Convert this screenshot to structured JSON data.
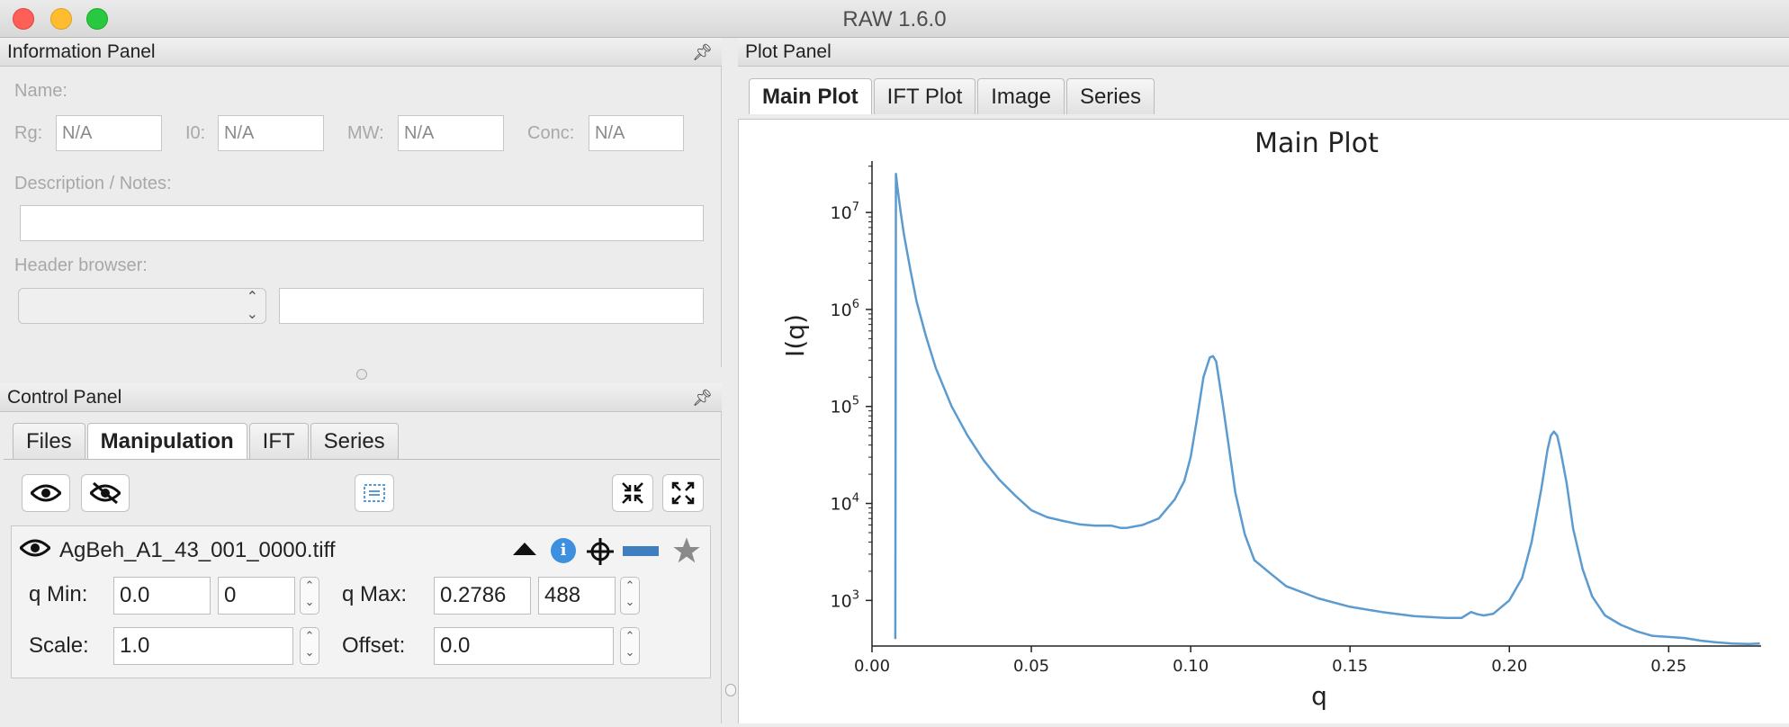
{
  "window": {
    "title": "RAW 1.6.0"
  },
  "info_panel": {
    "title": "Information Panel",
    "name_label": "Name:",
    "rg_label": "Rg:",
    "rg_value": "N/A",
    "i0_label": "I0:",
    "i0_value": "N/A",
    "mw_label": "MW:",
    "mw_value": "N/A",
    "conc_label": "Conc:",
    "conc_value": "N/A",
    "notes_label": "Description / Notes:",
    "header_label": "Header browser:"
  },
  "control_panel": {
    "title": "Control Panel",
    "tabs": [
      "Files",
      "Manipulation",
      "IFT",
      "Series"
    ],
    "active_tab": "Manipulation",
    "item": {
      "filename": "AgBeh_A1_43_001_0000.tiff",
      "qmin_label": "q Min:",
      "qmin_value": "0.0",
      "qmin_index": "0",
      "qmax_label": "q Max:",
      "qmax_value": "0.2786",
      "qmax_index": "488",
      "scale_label": "Scale:",
      "scale_value": "1.0",
      "offset_label": "Offset:",
      "offset_value": "0.0",
      "line_color": "#3f7fbf"
    }
  },
  "plot_panel": {
    "title": "Plot Panel",
    "tabs": [
      "Main Plot",
      "IFT Plot",
      "Image",
      "Series"
    ],
    "active_tab": "Main Plot"
  },
  "chart_data": {
    "type": "line",
    "title": "Main Plot",
    "xlabel": "q",
    "ylabel": "I(q)",
    "xlim": [
      0.0,
      0.279
    ],
    "ylim_log10": [
      2.53,
      7.53
    ],
    "y_scale": "log",
    "xticks": [
      "0.00",
      "0.05",
      "0.10",
      "0.15",
      "0.20",
      "0.25"
    ],
    "yticks": [
      "10^3",
      "10^4",
      "10^5",
      "10^6",
      "10^7"
    ],
    "color": "#5b9bd0",
    "series": [
      {
        "x": [
          0.0073,
          0.0075,
          0.008,
          0.009,
          0.01,
          0.012,
          0.014,
          0.017,
          0.02,
          0.025,
          0.03,
          0.035,
          0.04,
          0.045,
          0.05,
          0.055,
          0.06,
          0.065,
          0.07,
          0.075,
          0.078,
          0.08,
          0.085,
          0.09,
          0.095,
          0.098,
          0.1,
          0.102,
          0.104,
          0.106,
          0.107,
          0.108,
          0.11,
          0.112,
          0.114,
          0.117,
          0.12,
          0.125,
          0.13,
          0.14,
          0.15,
          0.16,
          0.17,
          0.18,
          0.185,
          0.188,
          0.19,
          0.192,
          0.195,
          0.2,
          0.204,
          0.207,
          0.21,
          0.212,
          0.213,
          0.214,
          0.215,
          0.216,
          0.218,
          0.22,
          0.223,
          0.226,
          0.23,
          0.235,
          0.24,
          0.245,
          0.25,
          0.255,
          0.26,
          0.265,
          0.27,
          0.275,
          0.2786
        ],
        "y": [
          400,
          25000000,
          18000000,
          10000000,
          6000000,
          2600000,
          1200000,
          520000,
          250000,
          100000,
          50000,
          28000,
          17500,
          12000,
          8500,
          7200,
          6600,
          6100,
          5900,
          5900,
          5600,
          5600,
          6000,
          7000,
          11000,
          17000,
          30000,
          75000,
          200000,
          320000,
          330000,
          290000,
          110000,
          38000,
          13000,
          4800,
          2600,
          1900,
          1400,
          1050,
          860,
          760,
          690,
          660,
          660,
          760,
          720,
          700,
          730,
          1000,
          1700,
          4000,
          14000,
          36000,
          50000,
          55000,
          50000,
          36000,
          16000,
          5500,
          2100,
          1100,
          700,
          560,
          480,
          430,
          420,
          410,
          385,
          370,
          360,
          355,
          360
        ]
      }
    ]
  }
}
